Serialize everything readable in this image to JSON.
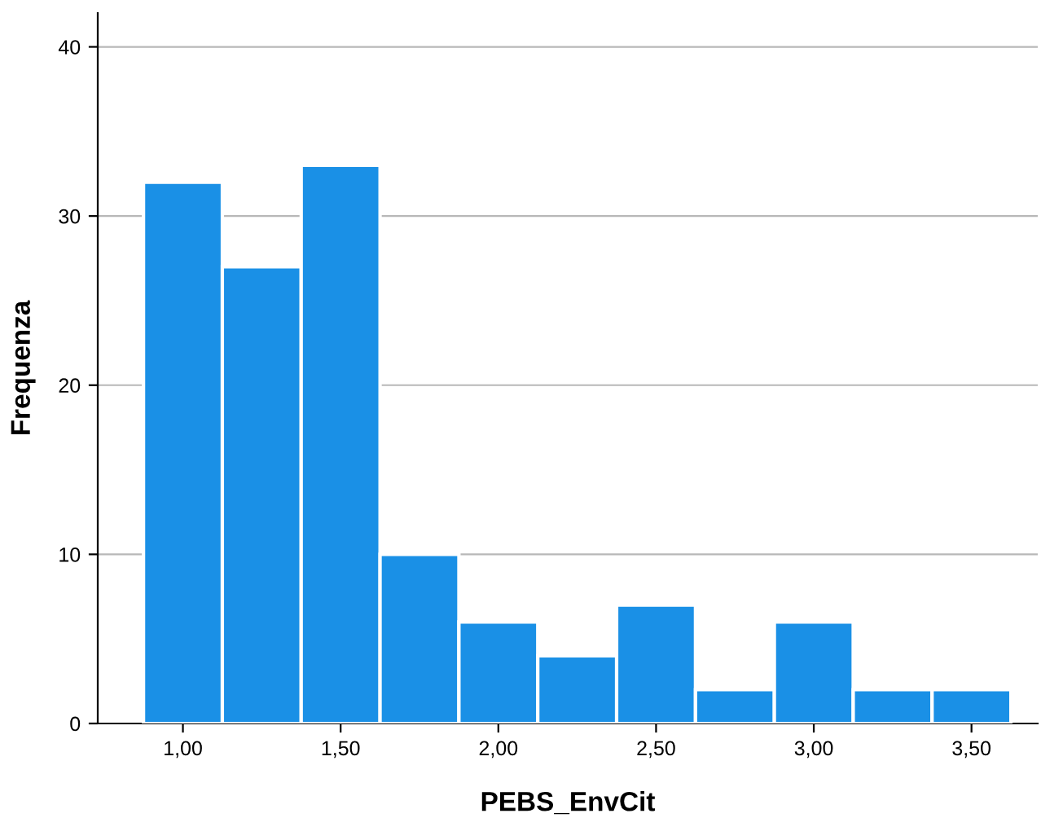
{
  "chart_data": {
    "type": "histogram",
    "xlabel": "PEBS_EnvCit",
    "ylabel": "Frequenza",
    "bins": [
      0.875,
      1.125,
      1.375,
      1.625,
      1.875,
      2.125,
      2.375,
      2.625,
      2.875,
      3.125,
      3.375,
      3.625
    ],
    "values": [
      32,
      27,
      33,
      10,
      6,
      4,
      7,
      2,
      6,
      2,
      2
    ],
    "color": "#1a90e6",
    "xlim": [
      0.73,
      3.71
    ],
    "ylim": [
      0,
      42
    ],
    "xticks": [
      {
        "value": 1,
        "label": "1,00"
      },
      {
        "value": 1.5,
        "label": "1,50"
      },
      {
        "value": 2,
        "label": "2,00"
      },
      {
        "value": 2.5,
        "label": "2,50"
      },
      {
        "value": 3,
        "label": "3,00"
      },
      {
        "value": 3.5,
        "label": "3,50"
      }
    ],
    "yticks": [
      0,
      10,
      20,
      30,
      40
    ],
    "grid": "y"
  }
}
